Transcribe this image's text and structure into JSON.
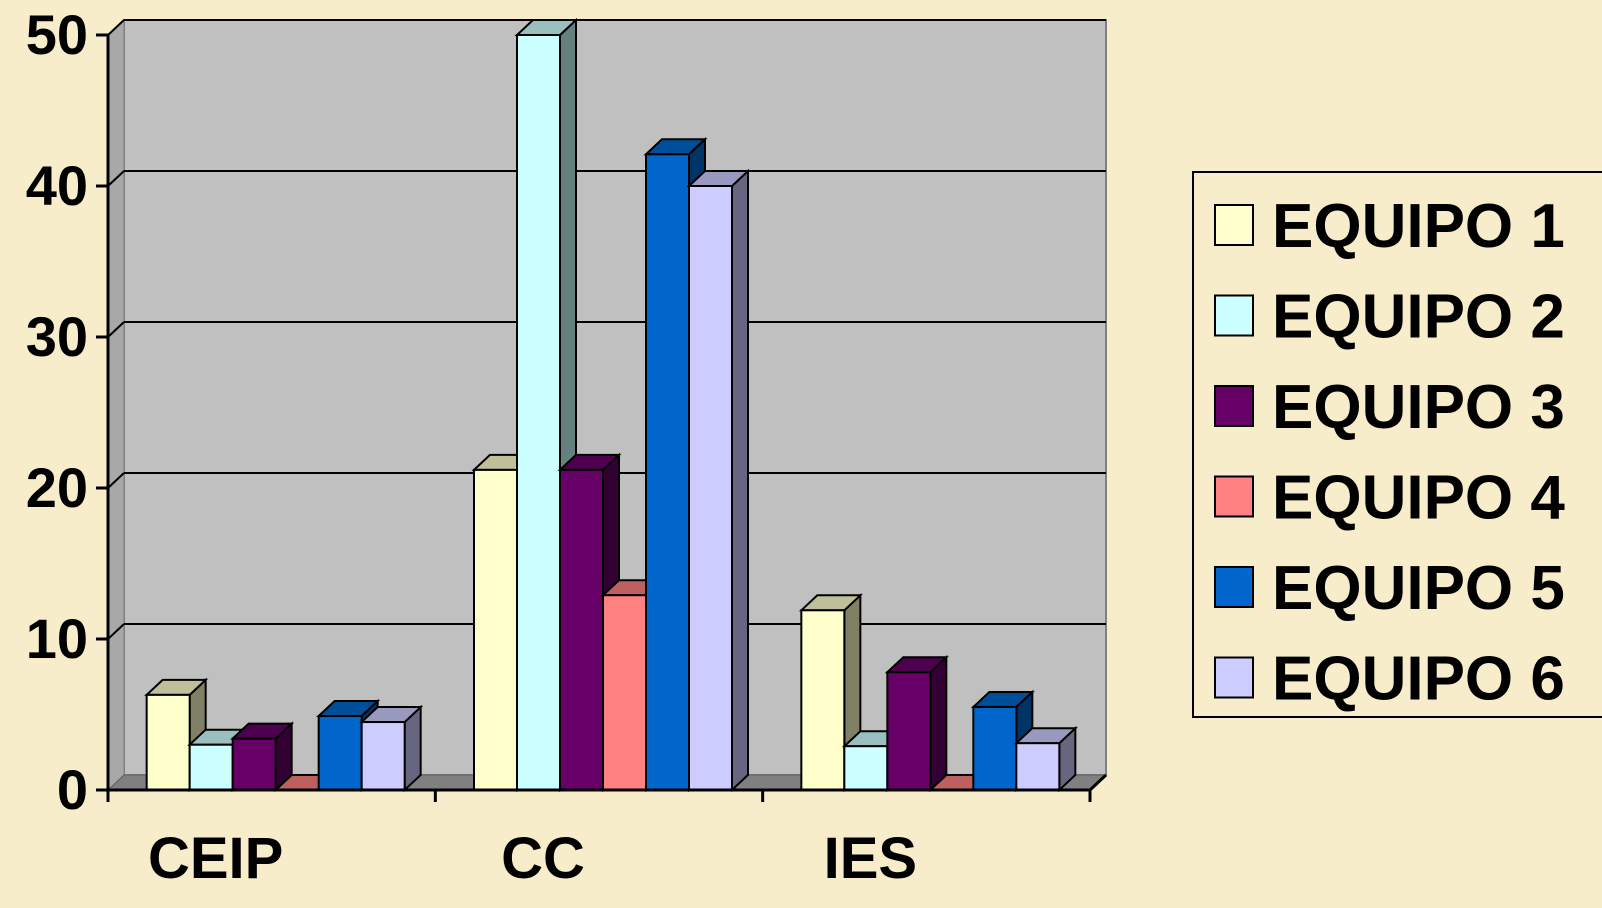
{
  "chart_data": {
    "type": "bar",
    "categories": [
      "CEIP",
      "CC",
      "IES"
    ],
    "series": [
      {
        "name": "EQUIPO 1",
        "color": "#FFFFCC",
        "values": [
          6.3,
          21.2,
          11.9
        ]
      },
      {
        "name": "EQUIPO 2",
        "color": "#CCFFFF",
        "values": [
          3.0,
          50.0,
          2.9
        ]
      },
      {
        "name": "EQUIPO 3",
        "color": "#660066",
        "values": [
          3.4,
          21.2,
          7.8
        ]
      },
      {
        "name": "EQUIPO 4",
        "color": "#FF8080",
        "values": [
          0,
          12.9,
          0
        ]
      },
      {
        "name": "EQUIPO 5",
        "color": "#0066CC",
        "values": [
          4.9,
          42.1,
          5.5
        ]
      },
      {
        "name": "EQUIPO 6",
        "color": "#CCCCFF",
        "values": [
          4.5,
          40.0,
          3.1
        ]
      }
    ],
    "yticks": [
      "0",
      "10",
      "20",
      "30",
      "40",
      "50"
    ],
    "ylim": [
      0,
      50
    ],
    "grid": true,
    "legend": "right",
    "plot_background": "#C0C0C0",
    "page_background": "#F7EDCB",
    "title": "",
    "xlabel": "",
    "ylabel": ""
  }
}
